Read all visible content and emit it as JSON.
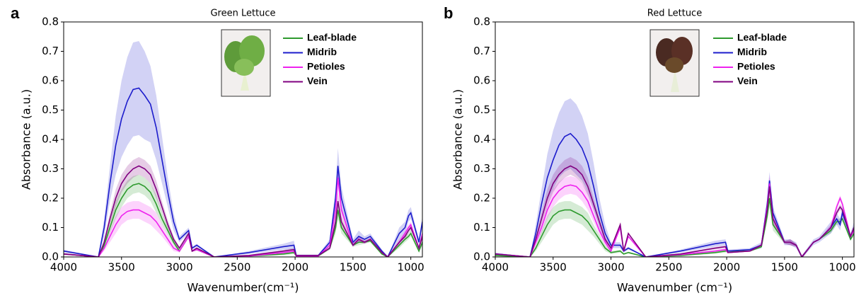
{
  "chart_data": [
    {
      "type": "line",
      "panel_label": "a",
      "title": "Green Lettuce",
      "x_label": "Wavenumber(cm⁻¹)",
      "y_label": "Absorbance (a.u.)",
      "xlim": [
        4000,
        900
      ],
      "xticks": [
        4000,
        3500,
        3000,
        2500,
        2000,
        1500,
        1000
      ],
      "ylim": [
        0,
        0.8
      ],
      "yticks": [
        {
          "value": 0,
          "label": "0.0"
        },
        0.1,
        0.2,
        0.3,
        0.4,
        0.5,
        0.6,
        0.7,
        0.8
      ],
      "x": [
        4000,
        3700,
        3650,
        3600,
        3550,
        3500,
        3450,
        3400,
        3350,
        3300,
        3250,
        3200,
        3150,
        3100,
        3050,
        3000,
        2920,
        2890,
        2850,
        2700,
        2400,
        2100,
        2010,
        1990,
        1800,
        1700,
        1650,
        1630,
        1600,
        1500,
        1450,
        1400,
        1350,
        1250,
        1200,
        1100,
        1050,
        1020,
        1000,
        930,
        900
      ],
      "series": [
        {
          "name": "Leaf-blade",
          "color": "#2e9a2e",
          "values": [
            0.01,
            0,
            0.04,
            0.1,
            0.16,
            0.2,
            0.23,
            0.245,
            0.25,
            0.24,
            0.22,
            0.18,
            0.13,
            0.09,
            0.05,
            0.02,
            0.07,
            0.02,
            0.025,
            0,
            0.003,
            0.01,
            0.015,
            0.003,
            0.003,
            0.03,
            0.1,
            0.16,
            0.1,
            0.04,
            0.05,
            0.05,
            0.055,
            0.01,
            0,
            0.04,
            0.06,
            0.07,
            0.08,
            0.02,
            0.05
          ],
          "error": [
            0.003,
            0,
            0.01,
            0.02,
            0.03,
            0.03,
            0.03,
            0.03,
            0.03,
            0.03,
            0.03,
            0.03,
            0.02,
            0.015,
            0.01,
            0.005,
            0.005,
            0.003,
            0.003,
            0,
            0.002,
            0.004,
            0.005,
            0.002,
            0.002,
            0.005,
            0.02,
            0.03,
            0.02,
            0.005,
            0.01,
            0.005,
            0.005,
            0.003,
            0,
            0.01,
            0.01,
            0.01,
            0.01,
            0.005,
            0.01
          ]
        },
        {
          "name": "Midrib",
          "color": "#1c1ccc",
          "values": [
            0.02,
            0,
            0.1,
            0.25,
            0.38,
            0.47,
            0.53,
            0.57,
            0.575,
            0.55,
            0.52,
            0.44,
            0.33,
            0.22,
            0.12,
            0.06,
            0.09,
            0.03,
            0.04,
            0,
            0.015,
            0.035,
            0.04,
            0.005,
            0.005,
            0.05,
            0.2,
            0.31,
            0.2,
            0.05,
            0.07,
            0.06,
            0.07,
            0.02,
            0,
            0.08,
            0.1,
            0.14,
            0.15,
            0.05,
            0.12
          ],
          "error": [
            0.005,
            0,
            0.03,
            0.06,
            0.1,
            0.13,
            0.15,
            0.16,
            0.16,
            0.15,
            0.13,
            0.11,
            0.08,
            0.05,
            0.03,
            0.01,
            0.01,
            0.005,
            0.005,
            0,
            0.005,
            0.01,
            0.015,
            0.003,
            0.003,
            0.01,
            0.04,
            0.06,
            0.04,
            0.01,
            0.02,
            0.01,
            0.01,
            0.005,
            0,
            0.02,
            0.02,
            0.02,
            0.02,
            0.01,
            0.02
          ]
        },
        {
          "name": "Petioles",
          "color": "#ee22ee",
          "values": [
            0.01,
            0,
            0.03,
            0.07,
            0.11,
            0.14,
            0.155,
            0.16,
            0.16,
            0.15,
            0.14,
            0.12,
            0.09,
            0.06,
            0.03,
            0.02,
            0.07,
            0.02,
            0.025,
            0,
            0.003,
            0.015,
            0.02,
            0.003,
            0.003,
            0.04,
            0.16,
            0.27,
            0.16,
            0.04,
            0.06,
            0.05,
            0.06,
            0.015,
            0,
            0.05,
            0.08,
            0.1,
            0.11,
            0.03,
            0.08
          ],
          "error": [
            0.003,
            0,
            0.01,
            0.02,
            0.03,
            0.03,
            0.03,
            0.03,
            0.03,
            0.03,
            0.03,
            0.03,
            0.02,
            0.015,
            0.01,
            0.005,
            0.005,
            0.003,
            0.003,
            0,
            0.002,
            0.004,
            0.005,
            0.002,
            0.002,
            0.005,
            0.02,
            0.03,
            0.02,
            0.005,
            0.01,
            0.005,
            0.005,
            0.003,
            0,
            0.01,
            0.01,
            0.01,
            0.01,
            0.005,
            0.01
          ]
        },
        {
          "name": "Vein",
          "color": "#800080",
          "values": [
            0.01,
            0,
            0.05,
            0.13,
            0.2,
            0.25,
            0.28,
            0.3,
            0.31,
            0.3,
            0.28,
            0.23,
            0.17,
            0.11,
            0.06,
            0.03,
            0.08,
            0.02,
            0.03,
            0,
            0.005,
            0.02,
            0.025,
            0.005,
            0.005,
            0.03,
            0.12,
            0.19,
            0.12,
            0.04,
            0.06,
            0.05,
            0.06,
            0.015,
            0,
            0.05,
            0.07,
            0.09,
            0.1,
            0.03,
            0.07
          ],
          "error": [
            0.003,
            0,
            0.01,
            0.02,
            0.03,
            0.03,
            0.03,
            0.03,
            0.03,
            0.03,
            0.03,
            0.03,
            0.02,
            0.015,
            0.01,
            0.005,
            0.005,
            0.003,
            0.003,
            0,
            0.002,
            0.004,
            0.005,
            0.002,
            0.002,
            0.005,
            0.02,
            0.03,
            0.02,
            0.005,
            0.01,
            0.005,
            0.005,
            0.003,
            0,
            0.01,
            0.01,
            0.01,
            0.01,
            0.005,
            0.01
          ]
        }
      ]
    },
    {
      "type": "line",
      "panel_label": "b",
      "title": "Red Lettuce",
      "x_label": "Wavenumber (cm⁻¹)",
      "y_label": "Absorbance (a.u.)",
      "xlim": [
        4000,
        900
      ],
      "xticks": [
        4000,
        3500,
        3000,
        2500,
        2000,
        1500,
        1000
      ],
      "ylim": [
        0,
        0.8
      ],
      "yticks": [
        {
          "value": 0,
          "label": "0.0"
        },
        0.1,
        0.2,
        0.3,
        0.4,
        0.5,
        0.6,
        0.7,
        0.8
      ],
      "x": [
        4000,
        3700,
        3650,
        3600,
        3550,
        3500,
        3450,
        3400,
        3350,
        3300,
        3250,
        3200,
        3150,
        3100,
        3050,
        3000,
        2920,
        2890,
        2850,
        2700,
        2400,
        2100,
        2010,
        1990,
        1800,
        1700,
        1650,
        1630,
        1600,
        1500,
        1450,
        1400,
        1350,
        1250,
        1200,
        1100,
        1050,
        1020,
        1000,
        930,
        900
      ],
      "series": [
        {
          "name": "Leaf-blade",
          "color": "#2e9a2e",
          "values": [
            0.005,
            0,
            0.03,
            0.07,
            0.11,
            0.14,
            0.155,
            0.16,
            0.16,
            0.15,
            0.14,
            0.12,
            0.09,
            0.06,
            0.03,
            0.015,
            0.02,
            0.01,
            0.015,
            0,
            0.005,
            0.015,
            0.02,
            0.02,
            0.02,
            0.035,
            0.14,
            0.2,
            0.11,
            0.05,
            0.05,
            0.04,
            0,
            0.05,
            0.06,
            0.09,
            0.12,
            0.12,
            0.13,
            0.06,
            0.08
          ],
          "error": [
            0.003,
            0,
            0.01,
            0.02,
            0.03,
            0.03,
            0.03,
            0.03,
            0.03,
            0.03,
            0.03,
            0.03,
            0.02,
            0.015,
            0.01,
            0.005,
            0.005,
            0.003,
            0.003,
            0,
            0.002,
            0.004,
            0.005,
            0.002,
            0.002,
            0.005,
            0.02,
            0.03,
            0.02,
            0.005,
            0.01,
            0.005,
            0.005,
            0.003,
            0,
            0.01,
            0.01,
            0.01,
            0.01,
            0.005,
            0.01
          ]
        },
        {
          "name": "Midrib",
          "color": "#1c1ccc",
          "values": [
            0.01,
            0,
            0.08,
            0.18,
            0.27,
            0.33,
            0.38,
            0.41,
            0.42,
            0.4,
            0.37,
            0.32,
            0.24,
            0.15,
            0.08,
            0.04,
            0.04,
            0.02,
            0.03,
            0,
            0.02,
            0.045,
            0.05,
            0.02,
            0.025,
            0.04,
            0.18,
            0.26,
            0.15,
            0.05,
            0.05,
            0.04,
            0,
            0.05,
            0.06,
            0.1,
            0.13,
            0.11,
            0.15,
            0.07,
            0.1
          ],
          "error": [
            0.005,
            0,
            0.03,
            0.05,
            0.08,
            0.1,
            0.11,
            0.12,
            0.12,
            0.12,
            0.11,
            0.1,
            0.08,
            0.05,
            0.03,
            0.01,
            0.01,
            0.005,
            0.005,
            0,
            0.005,
            0.01,
            0.01,
            0.005,
            0.005,
            0.01,
            0.02,
            0.03,
            0.02,
            0.01,
            0.01,
            0.01,
            0.005,
            0.01,
            0.01,
            0.02,
            0.02,
            0.02,
            0.02,
            0.01,
            0.02
          ]
        },
        {
          "name": "Petioles",
          "color": "#ee22ee",
          "values": [
            0.01,
            0,
            0.05,
            0.1,
            0.16,
            0.2,
            0.225,
            0.24,
            0.245,
            0.24,
            0.22,
            0.19,
            0.14,
            0.09,
            0.05,
            0.02,
            0.1,
            0.02,
            0.07,
            0,
            0.008,
            0.02,
            0.025,
            0.015,
            0.02,
            0.04,
            0.17,
            0.25,
            0.13,
            0.05,
            0.05,
            0.04,
            0,
            0.05,
            0.06,
            0.1,
            0.17,
            0.2,
            0.18,
            0.07,
            0.09
          ],
          "error": [
            0.003,
            0,
            0.01,
            0.02,
            0.03,
            0.03,
            0.03,
            0.03,
            0.03,
            0.03,
            0.03,
            0.03,
            0.02,
            0.015,
            0.01,
            0.005,
            0.005,
            0.003,
            0.003,
            0,
            0.002,
            0.004,
            0.005,
            0.002,
            0.002,
            0.005,
            0.02,
            0.03,
            0.02,
            0.005,
            0.01,
            0.005,
            0.005,
            0.003,
            0,
            0.01,
            0.01,
            0.01,
            0.01,
            0.005,
            0.01
          ]
        },
        {
          "name": "Vein",
          "color": "#800080",
          "values": [
            0.01,
            0,
            0.06,
            0.13,
            0.2,
            0.25,
            0.28,
            0.3,
            0.31,
            0.3,
            0.28,
            0.24,
            0.18,
            0.12,
            0.06,
            0.03,
            0.11,
            0.02,
            0.08,
            0,
            0.01,
            0.03,
            0.035,
            0.015,
            0.02,
            0.04,
            0.16,
            0.24,
            0.13,
            0.05,
            0.05,
            0.04,
            0,
            0.05,
            0.06,
            0.1,
            0.15,
            0.17,
            0.16,
            0.07,
            0.1
          ],
          "error": [
            0.003,
            0,
            0.01,
            0.02,
            0.03,
            0.03,
            0.03,
            0.03,
            0.03,
            0.03,
            0.03,
            0.03,
            0.02,
            0.015,
            0.01,
            0.005,
            0.005,
            0.003,
            0.003,
            0,
            0.002,
            0.004,
            0.005,
            0.002,
            0.002,
            0.005,
            0.02,
            0.03,
            0.02,
            0.005,
            0.01,
            0.005,
            0.005,
            0.003,
            0,
            0.01,
            0.01,
            0.01,
            0.01,
            0.005,
            0.01
          ]
        }
      ]
    }
  ]
}
